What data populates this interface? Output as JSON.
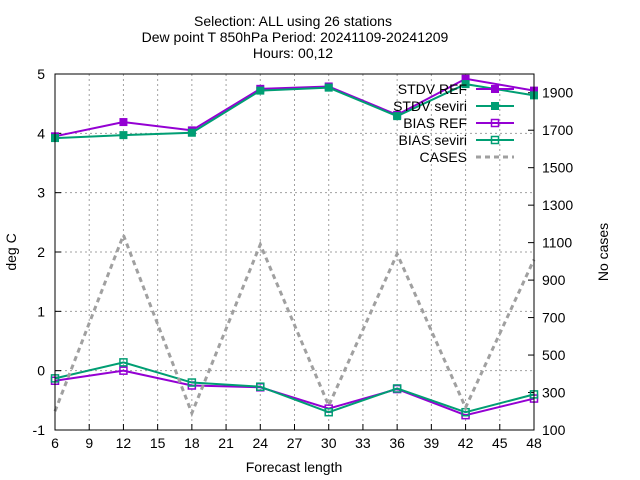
{
  "chart_data": {
    "type": "line",
    "title_lines": [
      "Selection: ALL using    26 stations",
      "Dew point T 850hPa   Period: 20241109-20241209",
      "Hours: 00,12"
    ],
    "xlabel": "Forecast length",
    "ylabel": "deg C",
    "y2label": "No cases",
    "xlim": [
      6,
      48
    ],
    "ylim": [
      -1,
      5
    ],
    "y2lim": [
      100,
      2000
    ],
    "xticks": [
      6,
      9,
      12,
      15,
      18,
      21,
      24,
      27,
      30,
      33,
      36,
      39,
      42,
      45,
      48
    ],
    "yticks": [
      -1,
      0,
      1,
      2,
      3,
      4,
      5
    ],
    "y2ticks": [
      100,
      300,
      500,
      700,
      900,
      1100,
      1300,
      1500,
      1700,
      1900
    ],
    "grid": true,
    "legend_position": "top-right",
    "x": [
      6,
      12,
      18,
      24,
      30,
      36,
      42,
      48
    ],
    "series": [
      {
        "name": "STDV REF",
        "axis": "y",
        "color": "#9400d3",
        "marker": "square",
        "values": [
          3.95,
          4.19,
          4.05,
          4.75,
          4.79,
          4.31,
          4.92,
          4.72
        ]
      },
      {
        "name": "STDV seviri",
        "axis": "y",
        "color": "#009e73",
        "marker": "square",
        "values": [
          3.92,
          3.97,
          4.01,
          4.72,
          4.77,
          4.29,
          4.83,
          4.64
        ]
      },
      {
        "name": "BIAS REF",
        "axis": "y",
        "color": "#9400d3",
        "marker": "square-open",
        "values": [
          -0.17,
          0.0,
          -0.25,
          -0.28,
          -0.64,
          -0.31,
          -0.75,
          -0.47
        ]
      },
      {
        "name": "BIAS seviri",
        "axis": "y",
        "color": "#009e73",
        "marker": "square-open",
        "values": [
          -0.13,
          0.14,
          -0.2,
          -0.27,
          -0.7,
          -0.3,
          -0.7,
          -0.4
        ]
      },
      {
        "name": "CASES",
        "axis": "y2",
        "color": "#a0a0a0",
        "marker": "none",
        "dash": true,
        "values": [
          200,
          1140,
          190,
          1090,
          230,
          1040,
          220,
          1010
        ]
      }
    ]
  }
}
